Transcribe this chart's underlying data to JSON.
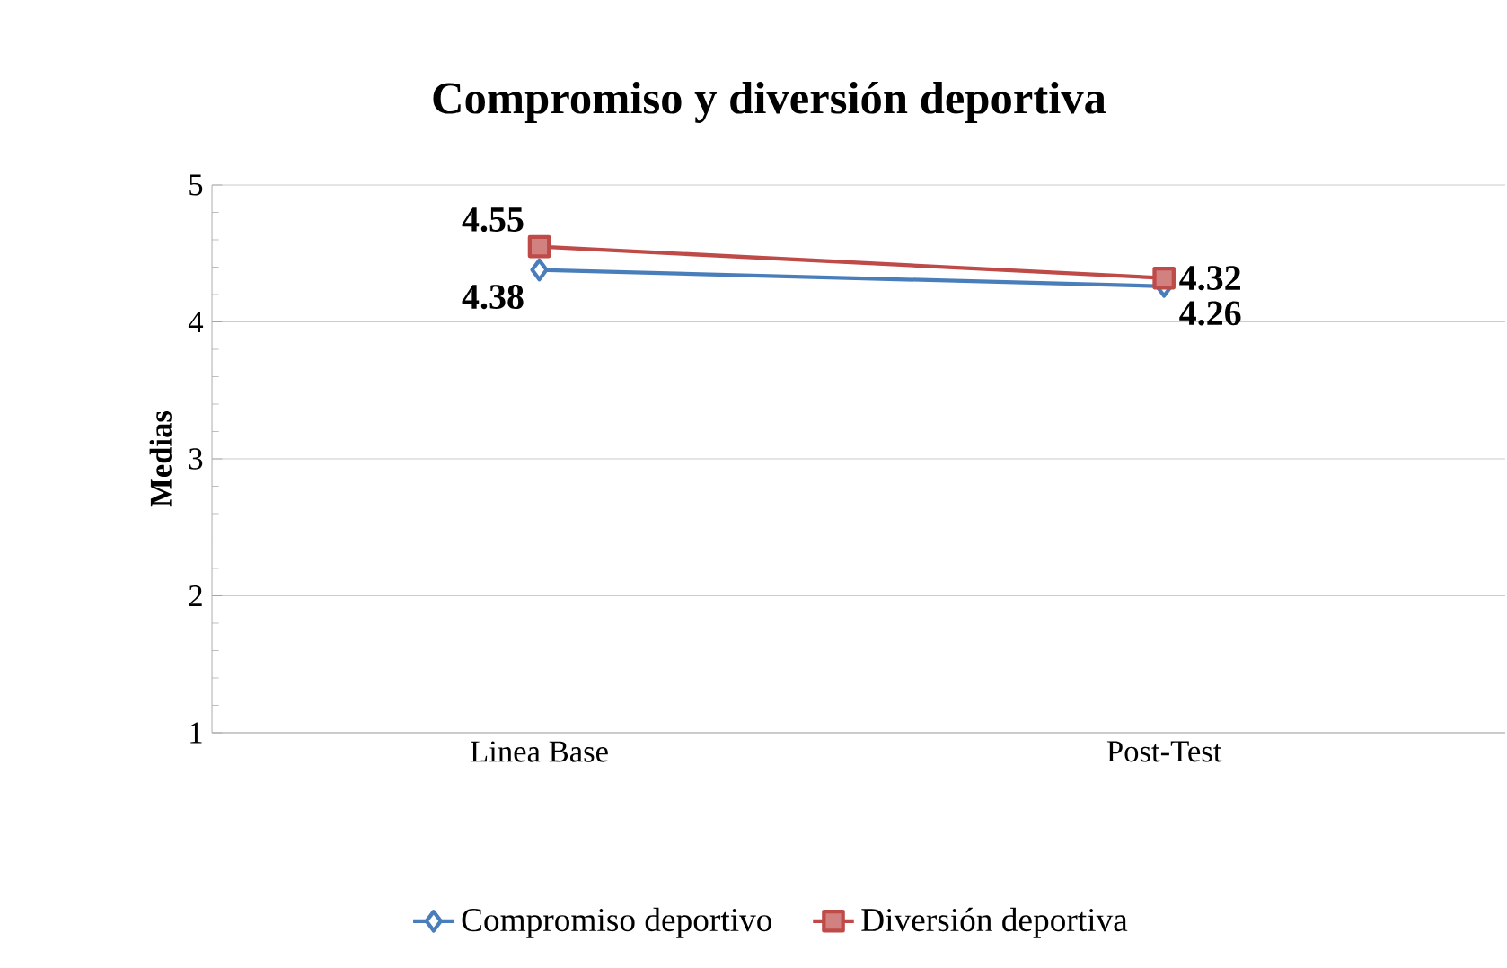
{
  "chart_data": {
    "type": "line",
    "title": "Compromiso y diversión deportiva",
    "ylabel": "Medias",
    "categories": [
      "Linea Base",
      "Post-Test"
    ],
    "series": [
      {
        "name": "Compromiso deportivo",
        "color": "#4a7ebb",
        "marker": "diamond",
        "values": [
          4.38,
          4.26
        ]
      },
      {
        "name": "Diversión deportiva",
        "color": "#be4b48",
        "marker": "square",
        "values": [
          4.55,
          4.32
        ]
      }
    ],
    "ylim": [
      1,
      5
    ],
    "yticks": [
      1,
      2,
      3,
      4,
      5
    ],
    "grid": "y",
    "legend": "bottom",
    "data_labels": true,
    "line_style": "solid"
  }
}
